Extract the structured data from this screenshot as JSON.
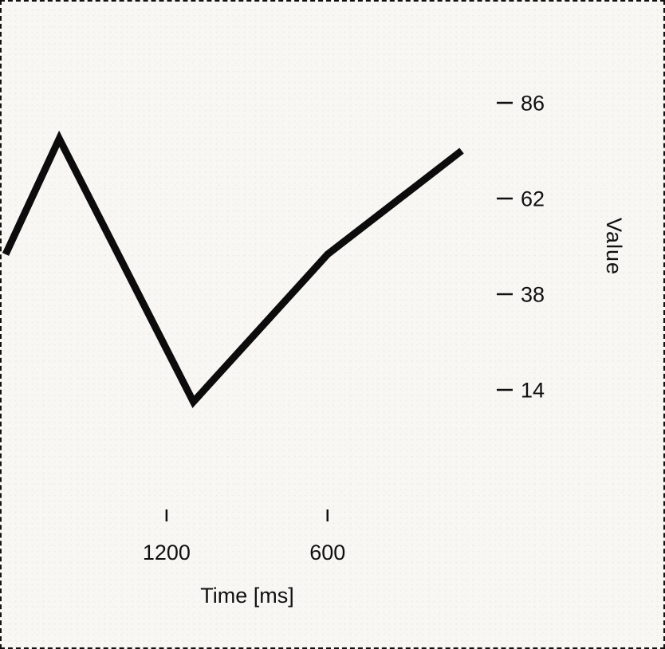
{
  "figure": {
    "background": "#f8f7f3",
    "border_color": "#111111",
    "line_color": "#0c0c0c",
    "text_color": "#101010"
  },
  "chart_data": {
    "type": "line",
    "title": "",
    "xlabel": "Time [ms]",
    "ylabel": "Value",
    "x": [
      1800,
      1600,
      1100,
      600,
      100
    ],
    "y": [
      48,
      77,
      11,
      48,
      74
    ],
    "x_axis_reversed": true,
    "xlim": [
      1800,
      100
    ],
    "ylim": [
      10,
      90
    ],
    "xticks": [
      1200,
      600
    ],
    "yticks": [
      86,
      62,
      38,
      14
    ],
    "y_axis_side": "right",
    "grid": false,
    "legend": null
  }
}
